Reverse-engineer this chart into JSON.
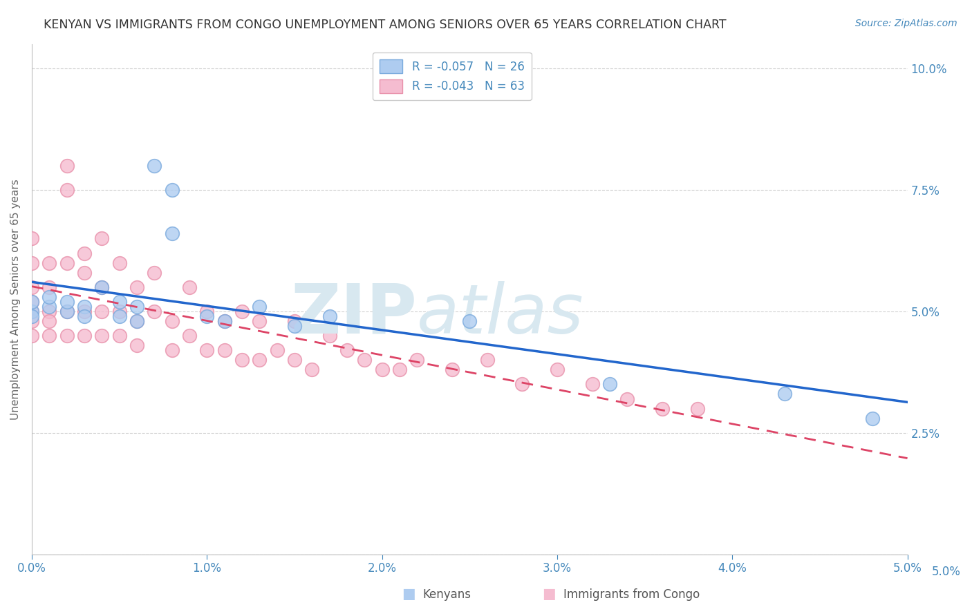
{
  "title": "KENYAN VS IMMIGRANTS FROM CONGO UNEMPLOYMENT AMONG SENIORS OVER 65 YEARS CORRELATION CHART",
  "source": "Source: ZipAtlas.com",
  "ylabel": "Unemployment Among Seniors over 65 years",
  "xlim": [
    0.0,
    0.05
  ],
  "ylim": [
    0.0,
    0.105
  ],
  "xtick_labels": [
    "0.0%",
    "1.0%",
    "2.0%",
    "3.0%",
    "4.0%",
    "5.0%"
  ],
  "legend1_label": "R = -0.057   N = 26",
  "legend2_label": "R = -0.043   N = 63",
  "bottom_legend1": "Kenyans",
  "bottom_legend2": "Immigrants from Congo",
  "kenyan_color": "#aeccf0",
  "congo_color": "#f5bcd0",
  "kenyan_edge": "#7aaadd",
  "congo_edge": "#e890aa",
  "trend_blue": "#2266cc",
  "trend_pink": "#dd4466",
  "watermark_color": "#d8e8f0",
  "title_color": "#333333",
  "axis_color": "#4488bb",
  "grid_color": "#cccccc",
  "kenyan_x": [
    0.0,
    0.0,
    0.0,
    0.001,
    0.001,
    0.002,
    0.002,
    0.003,
    0.003,
    0.004,
    0.005,
    0.005,
    0.006,
    0.006,
    0.007,
    0.008,
    0.008,
    0.01,
    0.011,
    0.013,
    0.015,
    0.017,
    0.025,
    0.033,
    0.043,
    0.048
  ],
  "kenyan_y": [
    0.05,
    0.052,
    0.049,
    0.051,
    0.053,
    0.05,
    0.052,
    0.051,
    0.049,
    0.055,
    0.052,
    0.049,
    0.048,
    0.051,
    0.08,
    0.075,
    0.066,
    0.049,
    0.048,
    0.051,
    0.047,
    0.049,
    0.048,
    0.035,
    0.033,
    0.028
  ],
  "congo_x": [
    0.0,
    0.0,
    0.0,
    0.0,
    0.0,
    0.0,
    0.0,
    0.001,
    0.001,
    0.001,
    0.001,
    0.001,
    0.002,
    0.002,
    0.002,
    0.002,
    0.002,
    0.003,
    0.003,
    0.003,
    0.003,
    0.004,
    0.004,
    0.004,
    0.004,
    0.005,
    0.005,
    0.005,
    0.006,
    0.006,
    0.006,
    0.007,
    0.007,
    0.008,
    0.008,
    0.009,
    0.009,
    0.01,
    0.01,
    0.011,
    0.011,
    0.012,
    0.012,
    0.013,
    0.013,
    0.014,
    0.015,
    0.015,
    0.016,
    0.017,
    0.018,
    0.019,
    0.02,
    0.021,
    0.022,
    0.024,
    0.026,
    0.028,
    0.03,
    0.032,
    0.034,
    0.036,
    0.038
  ],
  "congo_y": [
    0.05,
    0.048,
    0.055,
    0.06,
    0.045,
    0.065,
    0.052,
    0.05,
    0.048,
    0.06,
    0.055,
    0.045,
    0.08,
    0.075,
    0.06,
    0.05,
    0.045,
    0.062,
    0.058,
    0.05,
    0.045,
    0.065,
    0.055,
    0.05,
    0.045,
    0.06,
    0.05,
    0.045,
    0.055,
    0.048,
    0.043,
    0.058,
    0.05,
    0.048,
    0.042,
    0.055,
    0.045,
    0.05,
    0.042,
    0.048,
    0.042,
    0.05,
    0.04,
    0.048,
    0.04,
    0.042,
    0.048,
    0.04,
    0.038,
    0.045,
    0.042,
    0.04,
    0.038,
    0.038,
    0.04,
    0.038,
    0.04,
    0.035,
    0.038,
    0.035,
    0.032,
    0.03,
    0.03
  ],
  "background_color": "#ffffff"
}
